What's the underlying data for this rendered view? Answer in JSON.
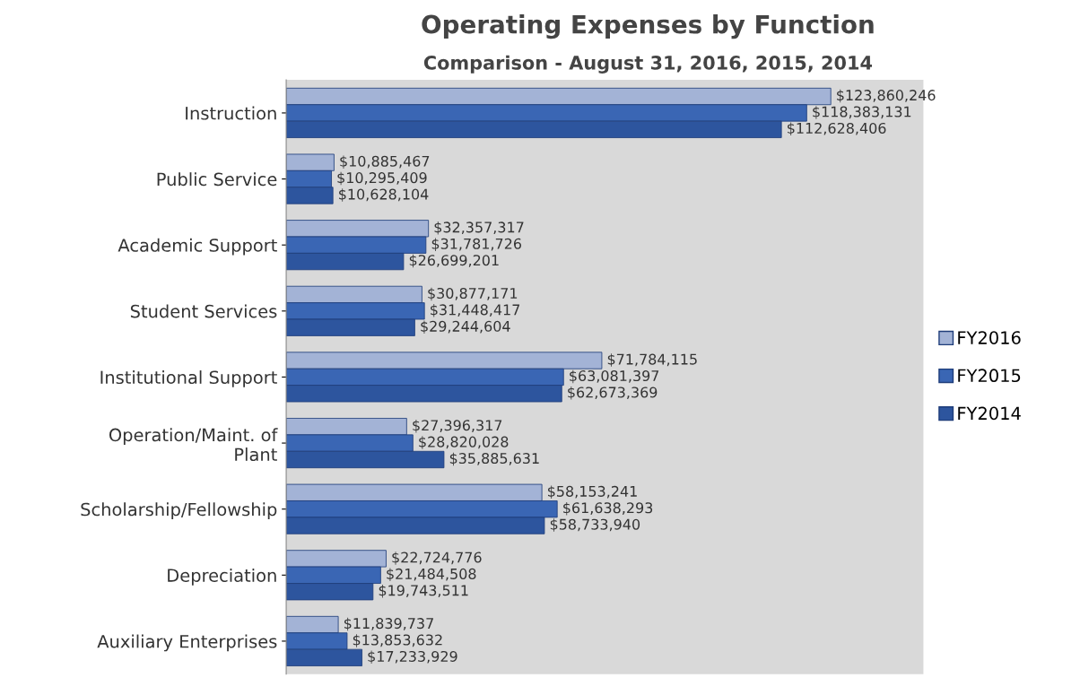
{
  "chart_data": {
    "type": "bar",
    "orientation": "horizontal",
    "title": "Operating Expenses by Function",
    "subtitle": "Comparison - August 31, 2016, 2015, 2014",
    "categories": [
      "Instruction",
      "Public Service",
      "Academic Support",
      "Student Services",
      "Institutional Support",
      "Operation/Maint. of\nPlant",
      "Scholarship/Fellowship",
      "Depreciation",
      "Auxiliary Enterprises"
    ],
    "series": [
      {
        "name": "FY2016",
        "color": "#a3b3d6",
        "values": [
          123860246,
          10885467,
          32357317,
          30877171,
          71784115,
          27396317,
          58153241,
          22724776,
          11839737
        ],
        "value_labels": [
          "$123,860,246",
          "$10,885,467",
          "$32,357,317",
          "$30,877,171",
          "$71,784,115",
          "$27,396,317",
          "$58,153,241",
          "$22,724,776",
          "$11,839,737"
        ]
      },
      {
        "name": "FY2015",
        "color": "#3a66b4",
        "values": [
          118383131,
          10295409,
          31781726,
          31448417,
          63081397,
          28820028,
          61638293,
          21484508,
          13853632
        ],
        "value_labels": [
          "$118,383,131",
          "$10,295,409",
          "$31,781,726",
          "$31,448,417",
          "$63,081,397",
          "$28,820,028",
          "$61,638,293",
          "$21,484,508",
          "$13,853,632"
        ]
      },
      {
        "name": "FY2014",
        "color": "#2d559e",
        "values": [
          112628406,
          10628104,
          26699201,
          29244604,
          62673369,
          35885631,
          58733940,
          19743511,
          17233929
        ],
        "value_labels": [
          "$112,628,406",
          "$10,628,104",
          "$26,699,201",
          "$29,244,604",
          "$62,673,369",
          "$35,885,631",
          "$58,733,940",
          "$19,743,511",
          "$17,233,929"
        ]
      }
    ],
    "tick_labels": "y",
    "legend": "right",
    "grid": false
  }
}
